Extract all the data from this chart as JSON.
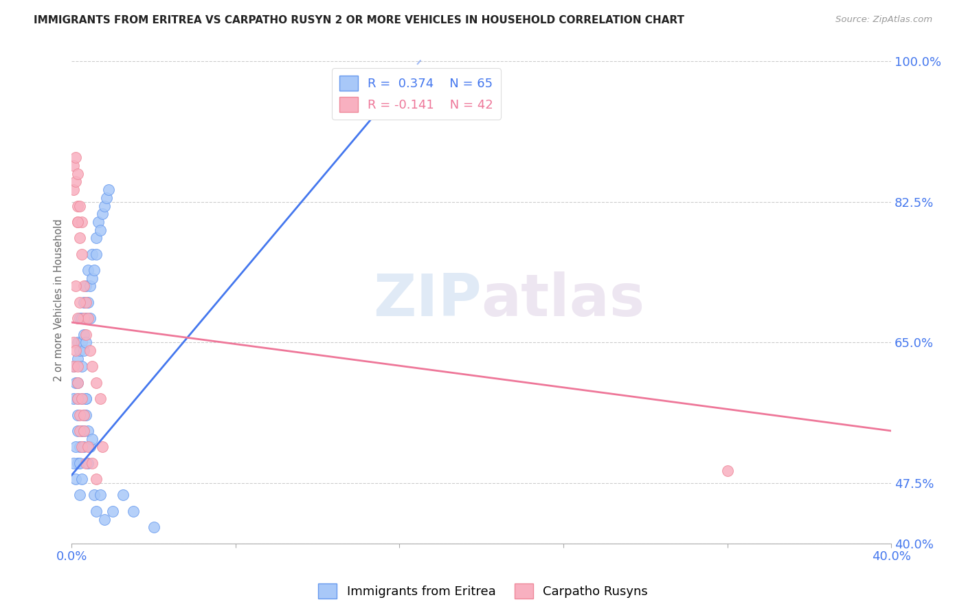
{
  "title": "IMMIGRANTS FROM ERITREA VS CARPATHO RUSYN 2 OR MORE VEHICLES IN HOUSEHOLD CORRELATION CHART",
  "source": "Source: ZipAtlas.com",
  "ylabel": "2 or more Vehicles in Household",
  "xmin": 0.0,
  "xmax": 0.4,
  "ymin": 0.4,
  "ymax": 1.005,
  "xtick_positions": [
    0.0,
    0.08,
    0.16,
    0.24,
    0.32,
    0.4
  ],
  "xtick_labels": [
    "0.0%",
    "",
    "",
    "",
    "",
    "40.0%"
  ],
  "ytick_vals": [
    1.0,
    0.825,
    0.65,
    0.475,
    0.4
  ],
  "ytick_labels": [
    "100.0%",
    "82.5%",
    "65.0%",
    "47.5%",
    "40.0%"
  ],
  "series1_color": "#a8c8f8",
  "series2_color": "#f8b0c0",
  "series1_edge_color": "#6699ee",
  "series2_edge_color": "#ee8899",
  "series1_line_color": "#4477ee",
  "series2_line_color": "#ee7799",
  "series1_label": "Immigrants from Eritrea",
  "series2_label": "Carpatho Rusyns",
  "R1": 0.374,
  "N1": 65,
  "R2": -0.141,
  "N2": 42,
  "watermark_zip": "ZIP",
  "watermark_atlas": "atlas",
  "blue_line_x0": 0.0,
  "blue_line_y0": 0.485,
  "blue_line_x1": 0.165,
  "blue_line_y1": 0.985,
  "pink_line_x0": 0.0,
  "pink_line_y0": 0.675,
  "pink_line_x1": 0.4,
  "pink_line_y1": 0.54,
  "series1_x": [
    0.001,
    0.001,
    0.002,
    0.003,
    0.003,
    0.003,
    0.003,
    0.004,
    0.004,
    0.005,
    0.005,
    0.005,
    0.005,
    0.006,
    0.006,
    0.006,
    0.007,
    0.007,
    0.007,
    0.008,
    0.008,
    0.009,
    0.009,
    0.01,
    0.01,
    0.011,
    0.012,
    0.012,
    0.013,
    0.014,
    0.015,
    0.016,
    0.017,
    0.018,
    0.002,
    0.003,
    0.004,
    0.005,
    0.006,
    0.007,
    0.001,
    0.002,
    0.003,
    0.003,
    0.004,
    0.004,
    0.005,
    0.006,
    0.006,
    0.007,
    0.007,
    0.008,
    0.008,
    0.009,
    0.01,
    0.011,
    0.012,
    0.014,
    0.016,
    0.02,
    0.025,
    0.03,
    0.04,
    0.14,
    0.14
  ],
  "series1_y": [
    0.58,
    0.62,
    0.6,
    0.63,
    0.65,
    0.6,
    0.58,
    0.64,
    0.68,
    0.62,
    0.65,
    0.68,
    0.58,
    0.64,
    0.7,
    0.66,
    0.68,
    0.72,
    0.65,
    0.7,
    0.74,
    0.72,
    0.68,
    0.73,
    0.76,
    0.74,
    0.76,
    0.78,
    0.8,
    0.79,
    0.81,
    0.82,
    0.83,
    0.84,
    0.48,
    0.5,
    0.52,
    0.54,
    0.56,
    0.58,
    0.5,
    0.52,
    0.54,
    0.56,
    0.5,
    0.46,
    0.48,
    0.52,
    0.54,
    0.56,
    0.58,
    0.54,
    0.5,
    0.52,
    0.53,
    0.46,
    0.44,
    0.46,
    0.43,
    0.44,
    0.46,
    0.44,
    0.42,
    0.94,
    0.96
  ],
  "series2_x": [
    0.001,
    0.001,
    0.002,
    0.002,
    0.003,
    0.003,
    0.003,
    0.004,
    0.004,
    0.005,
    0.005,
    0.006,
    0.006,
    0.007,
    0.007,
    0.008,
    0.009,
    0.01,
    0.012,
    0.014,
    0.001,
    0.001,
    0.002,
    0.003,
    0.003,
    0.003,
    0.004,
    0.004,
    0.005,
    0.005,
    0.006,
    0.006,
    0.007,
    0.008,
    0.01,
    0.012,
    0.015,
    0.002,
    0.003,
    0.004,
    0.32,
    0.003
  ],
  "series2_y": [
    0.84,
    0.87,
    0.88,
    0.85,
    0.86,
    0.82,
    0.8,
    0.82,
    0.78,
    0.8,
    0.76,
    0.72,
    0.68,
    0.7,
    0.66,
    0.68,
    0.64,
    0.62,
    0.6,
    0.58,
    0.62,
    0.65,
    0.64,
    0.6,
    0.62,
    0.58,
    0.56,
    0.54,
    0.58,
    0.52,
    0.56,
    0.54,
    0.5,
    0.52,
    0.5,
    0.48,
    0.52,
    0.72,
    0.68,
    0.7,
    0.49,
    0.8
  ]
}
